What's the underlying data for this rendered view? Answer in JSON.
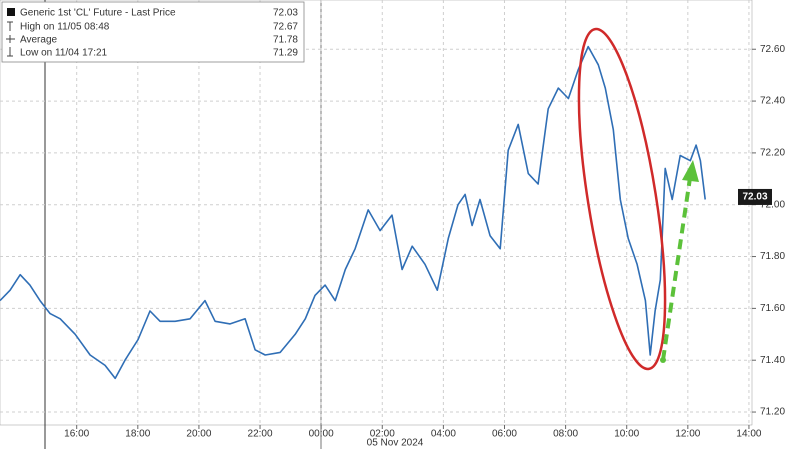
{
  "chart_data": {
    "type": "line",
    "legend": [
      {
        "label": "Generic 1st 'CL' Future - Last Price",
        "value": 72.03
      },
      {
        "label": "High on 11/05 08:48",
        "value": 72.67
      },
      {
        "label": "Average",
        "value": 71.78
      },
      {
        "label": "Low on 11/04 17:21",
        "value": 71.29
      }
    ],
    "last_value": 72.03,
    "date_label": "05 Nov 2024",
    "grid": true,
    "x": [
      -10.51,
      -10.18,
      -9.85,
      -9.53,
      -9.2,
      -8.87,
      -8.54,
      -8.05,
      -7.56,
      -7.07,
      -6.74,
      -6.42,
      -5.99,
      -5.6,
      -5.27,
      -4.78,
      -4.29,
      -3.8,
      -3.47,
      -2.98,
      -2.49,
      -2.16,
      -1.83,
      -1.34,
      -0.85,
      -0.52,
      -0.2,
      0.13,
      0.46,
      0.79,
      1.11,
      1.54,
      1.93,
      2.32,
      2.65,
      2.98,
      3.4,
      3.8,
      4.16,
      4.48,
      4.71,
      4.94,
      5.2,
      5.53,
      5.86,
      6.12,
      6.45,
      6.78,
      7.1,
      7.43,
      7.76,
      8.09,
      8.41,
      8.74,
      9.07,
      9.3,
      9.56,
      9.79,
      10.05,
      10.34,
      10.61,
      10.77,
      10.93,
      11.1,
      11.26,
      11.49,
      11.75,
      12.08,
      12.27,
      12.41,
      12.57
    ],
    "series": [
      {
        "name": "Generic 1st 'CL' Future - Last Price",
        "color": "#2f6eb5",
        "values": [
          71.63,
          71.67,
          71.73,
          71.69,
          71.63,
          71.58,
          71.56,
          71.5,
          71.42,
          71.38,
          71.33,
          71.4,
          71.48,
          71.59,
          71.55,
          71.55,
          71.56,
          71.63,
          71.55,
          71.54,
          71.56,
          71.44,
          71.42,
          71.43,
          71.5,
          71.56,
          71.65,
          71.69,
          71.63,
          71.75,
          71.83,
          71.98,
          71.9,
          71.96,
          71.75,
          71.84,
          71.77,
          71.67,
          71.87,
          72.0,
          72.04,
          71.92,
          72.02,
          71.88,
          71.83,
          72.21,
          72.31,
          72.12,
          72.08,
          72.37,
          72.45,
          72.41,
          72.52,
          72.61,
          72.54,
          72.45,
          72.29,
          72.02,
          71.87,
          71.77,
          71.63,
          71.42,
          71.59,
          71.71,
          72.14,
          72.02,
          72.19,
          72.17,
          72.23,
          72.17,
          72.02
        ]
      }
    ],
    "xlim": [
      -10.51,
      14.1
    ],
    "xticks": [
      {
        "value": -8,
        "label": "16:00"
      },
      {
        "value": -6,
        "label": "18:00"
      },
      {
        "value": -4,
        "label": "20:00"
      },
      {
        "value": -2,
        "label": "22:00"
      },
      {
        "value": 0,
        "label": "00:00"
      },
      {
        "value": 2,
        "label": "02:00"
      },
      {
        "value": 4,
        "label": "04:00"
      },
      {
        "value": 6,
        "label": "06:00"
      },
      {
        "value": 8,
        "label": "08:00"
      },
      {
        "value": 10,
        "label": "10:00"
      },
      {
        "value": 12,
        "label": "12:00"
      },
      {
        "value": 14,
        "label": "14:00"
      }
    ],
    "ylim": [
      71.15,
      72.79
    ],
    "yticks": [
      {
        "value": 71.2,
        "label": "71.20"
      },
      {
        "value": 71.4,
        "label": "71.40"
      },
      {
        "value": 71.6,
        "label": "71.60"
      },
      {
        "value": 71.8,
        "label": "71.80"
      },
      {
        "value": 72.0,
        "label": "72.00"
      },
      {
        "value": 72.2,
        "label": "72.20"
      },
      {
        "value": 72.4,
        "label": "72.40"
      },
      {
        "value": 72.6,
        "label": "72.60"
      }
    ]
  }
}
